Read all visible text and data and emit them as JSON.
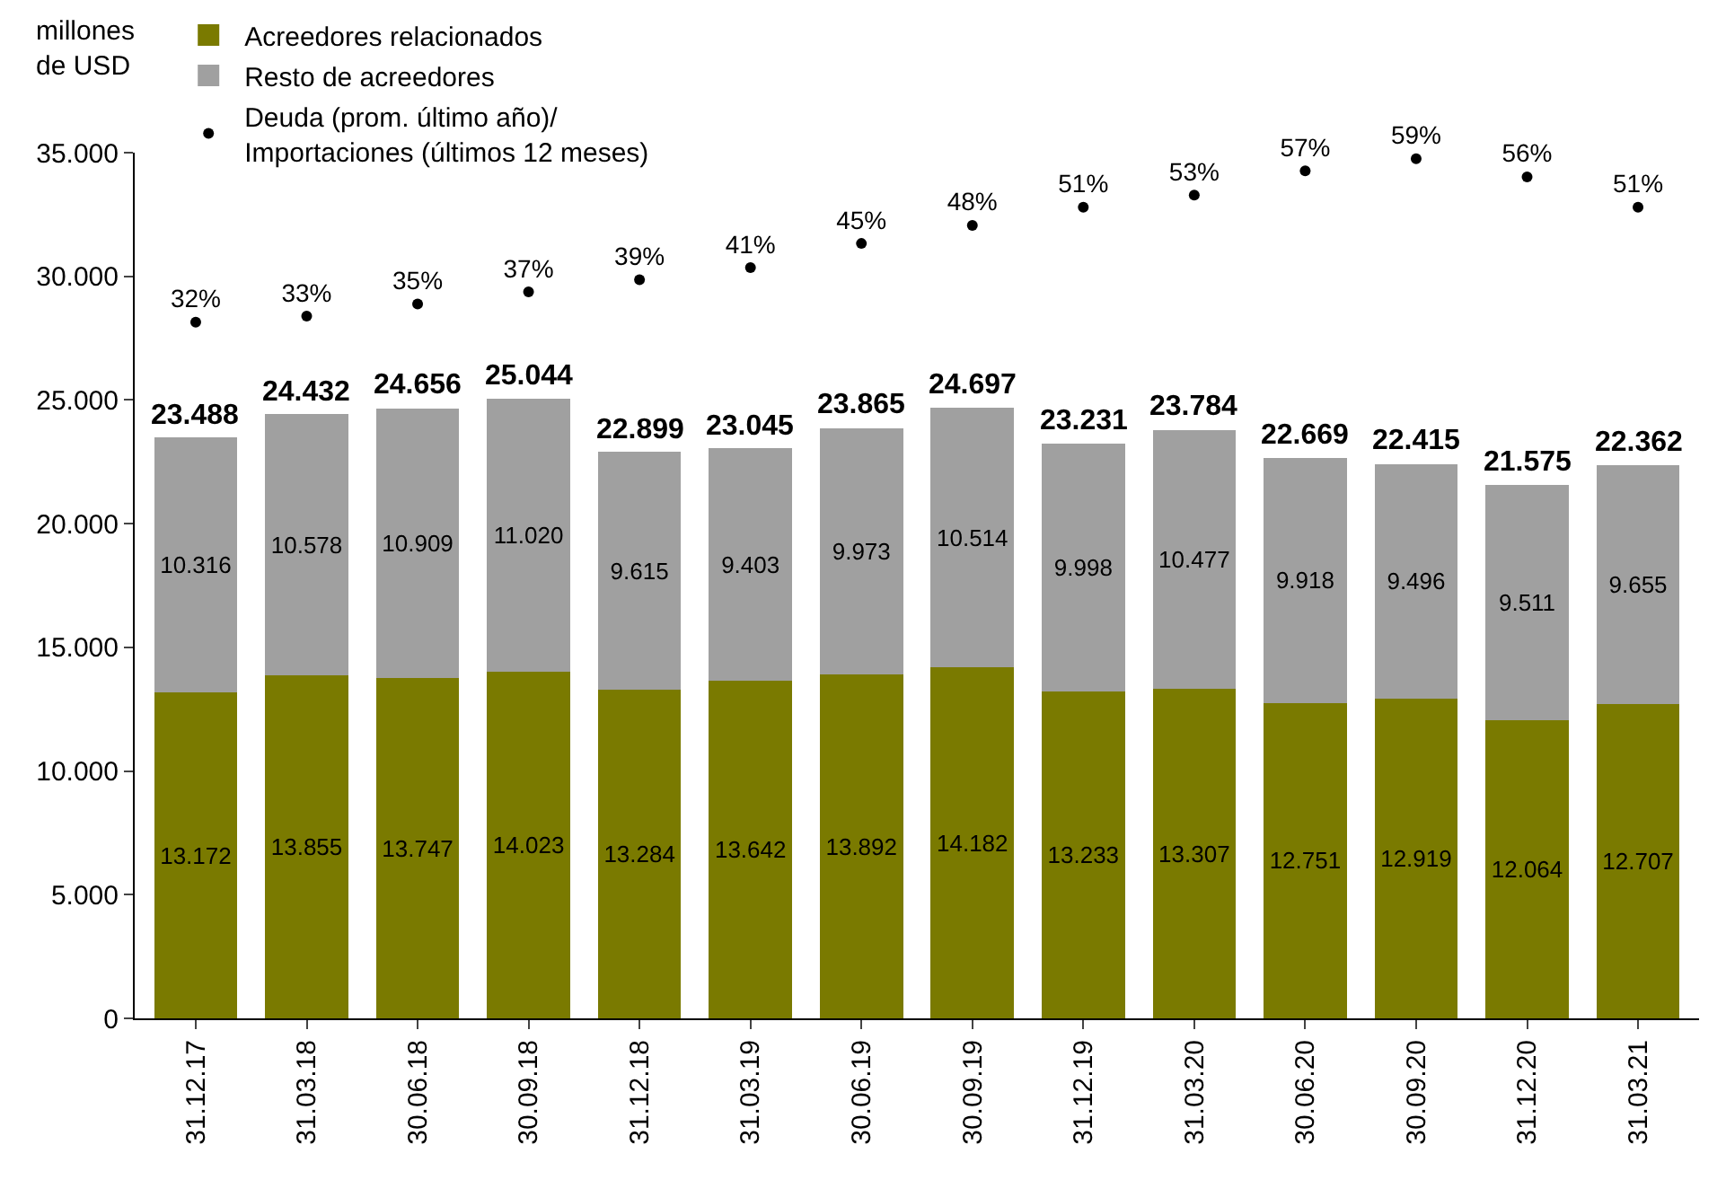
{
  "chart_data": {
    "type": "bar",
    "stacked": true,
    "ylabel": "millones\nde USD",
    "categories": [
      "31.12.17",
      "31.03.18",
      "30.06.18",
      "30.09.18",
      "31.12.18",
      "31.03.19",
      "30.06.19",
      "30.09.19",
      "31.12.19",
      "31.03.20",
      "30.06.20",
      "30.09.20",
      "31.12.20",
      "31.03.21"
    ],
    "series": [
      {
        "name": "Acreedores relacionados",
        "color": "#7a7a00",
        "values": [
          13172,
          13855,
          13747,
          14023,
          13284,
          13642,
          13892,
          14182,
          13233,
          13307,
          12751,
          12919,
          12064,
          12707
        ],
        "value_labels": [
          "13.172",
          "13.855",
          "13.747",
          "14.023",
          "13.284",
          "13.642",
          "13.892",
          "14.182",
          "13.233",
          "13.307",
          "12.751",
          "12.919",
          "12.064",
          "12.707"
        ]
      },
      {
        "name": "Resto de acreedores",
        "color": "#a0a0a0",
        "values": [
          10316,
          10578,
          10909,
          11020,
          9615,
          9403,
          9973,
          10514,
          9998,
          10477,
          9918,
          9496,
          9511,
          9655
        ],
        "value_labels": [
          "10.316",
          "10.578",
          "10.909",
          "11.020",
          "9.615",
          "9.403",
          "9.973",
          "10.514",
          "9.998",
          "10.477",
          "9.918",
          "9.496",
          "9.511",
          "9.655"
        ]
      },
      {
        "name": "Deuda (prom. último año)/\nImportaciones (últimos 12 meses)",
        "type": "scatter",
        "axis": "y2",
        "color": "#000000",
        "values": [
          32,
          33,
          35,
          37,
          39,
          41,
          45,
          48,
          51,
          53,
          57,
          59,
          56,
          51
        ],
        "value_labels": [
          "32%",
          "33%",
          "35%",
          "37%",
          "39%",
          "41%",
          "45%",
          "48%",
          "51%",
          "53%",
          "57%",
          "59%",
          "56%",
          "51%"
        ]
      }
    ],
    "totals": [
      "23.488",
      "24.432",
      "24.656",
      "25.044",
      "22.899",
      "23.045",
      "23.865",
      "24.697",
      "23.231",
      "23.784",
      "22.669",
      "22.415",
      "21.575",
      "22.362"
    ],
    "ylim": [
      0,
      35000
    ],
    "yticks": [
      0,
      {
        "value": 5000,
        "label": "5.000"
      },
      {
        "value": 10000,
        "label": "10.000"
      },
      {
        "value": 15000,
        "label": "15.000"
      },
      {
        "value": 20000,
        "label": "20.000"
      },
      {
        "value": 25000,
        "label": "25.000"
      },
      {
        "value": 30000,
        "label": "30.000"
      },
      {
        "value": 35000,
        "label": "35.000"
      }
    ],
    "y2lim": [
      -83,
      60
    ],
    "legend": "top left"
  }
}
